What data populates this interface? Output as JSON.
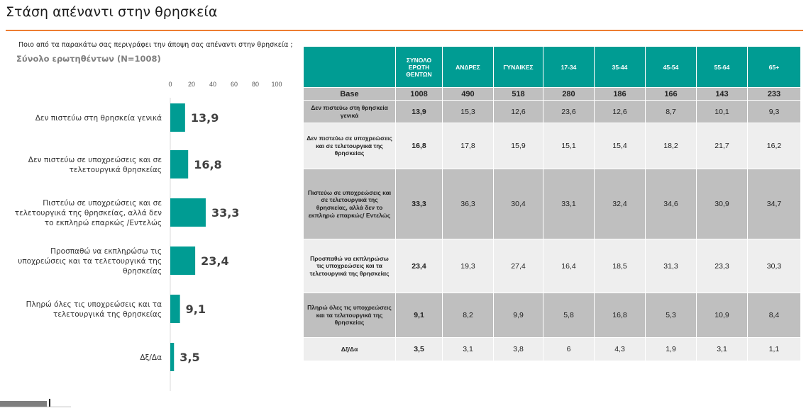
{
  "page": {
    "title": "Στάση απέναντι στην θρησκεία",
    "question": "Ποιο από τα παρακάτω σας περιγράφει την άποψη σας απέναντι στην θρησκεία ;",
    "base_label": "Σύνολο ερωτηθέντων (N=1008)"
  },
  "colors": {
    "accent": "#ed7d31",
    "bar": "#009c93",
    "header": "#009c93",
    "row_dark": "#bfbfbf",
    "row_light": "#eeeeee"
  },
  "chart_data": {
    "type": "bar",
    "orientation": "horizontal",
    "categories": [
      [
        "Δεν πιστεύω στη θρησκεία γενικά"
      ],
      [
        "Δεν πιστεύω σε υποχρεώσεις και σε",
        "τελετουργικά θρησκείας"
      ],
      [
        "Πιστεύω σε υποχρεώσεις και σε",
        "τελετουργικά της θρησκείας, αλλά δεν",
        "το εκπληρώ επαρκώς /Εντελώς"
      ],
      [
        "Προσπαθώ να εκπληρώσω τις",
        "υποχρεώσεις και τα τελετουργικά της",
        "θρησκείας"
      ],
      [
        "Πληρώ όλες τις υποχρεώσεις και τα",
        "τελετουργικά της θρησκείας"
      ],
      [
        "Δξ/Δα"
      ]
    ],
    "values": [
      13.9,
      16.8,
      33.3,
      23.4,
      9.1,
      3.5
    ],
    "value_labels": [
      "13,9",
      "16,8",
      "33,3",
      "23,4",
      "9,1",
      "3,5"
    ],
    "xlim": [
      0,
      100
    ],
    "ticks": [
      0,
      20,
      40,
      60,
      80,
      100
    ],
    "tick_labels": [
      "0",
      "20",
      "40",
      "60",
      "80",
      "100"
    ],
    "grid": false
  },
  "table": {
    "headers": [
      "ΣΥΝΟΛΟ ΕΡΩΤΗ ΘΕΝΤΩΝ",
      "ΑΝΔΡΕΣ",
      "ΓΥΝΑΙΚΕΣ",
      "17-34",
      "35-44",
      "45-54",
      "55-64",
      "65+"
    ],
    "base": {
      "label": "Base",
      "values": [
        "1008",
        "490",
        "518",
        "280",
        "186",
        "166",
        "143",
        "233"
      ]
    },
    "rows": [
      {
        "label": "Δεν πιστεύω στη θρησκεία γενικά",
        "values": [
          "13,9",
          "15,3",
          "12,6",
          "23,6",
          "12,6",
          "8,7",
          "10,1",
          "9,3"
        ]
      },
      {
        "label": "Δεν πιστεύω σε υποχρεώσεις και σε τελετουργικά της θρησκείας",
        "values": [
          "16,8",
          "17,8",
          "15,9",
          "15,1",
          "15,4",
          "18,2",
          "21,7",
          "16,2"
        ]
      },
      {
        "label": "Πιστεύω σε υποχρεώσεις και σε τελετουργικά της θρησκείας, αλλά δεν το εκπληρώ επαρκώς/ Εντελώς",
        "values": [
          "33,3",
          "36,3",
          "30,4",
          "33,1",
          "32,4",
          "34,6",
          "30,9",
          "34,7"
        ]
      },
      {
        "label": "Προσπαθώ να εκπληρώσω τις υποχρεώσεις και τα τελετουργικά της θρησκείας",
        "values": [
          "23,4",
          "19,3",
          "27,4",
          "16,4",
          "18,5",
          "31,3",
          "23,3",
          "30,3"
        ]
      },
      {
        "label": "Πληρώ όλες τις υποχρεώσεις και τα τελετουργικά της θρησκείας",
        "values": [
          "9,1",
          "8,2",
          "9,9",
          "5,8",
          "16,8",
          "5,3",
          "10,9",
          "8,4"
        ]
      },
      {
        "label": "Δξ/Δα",
        "values": [
          "3,5",
          "3,1",
          "3,8",
          "6",
          "4,3",
          "1,9",
          "3,1",
          "1,1"
        ]
      }
    ]
  }
}
